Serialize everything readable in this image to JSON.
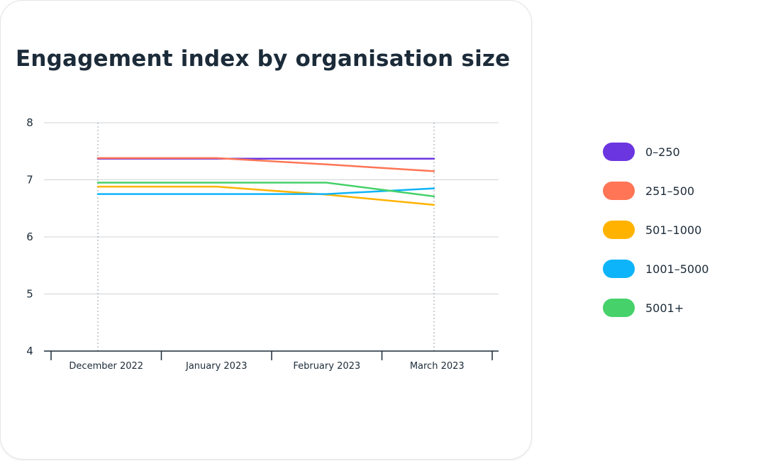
{
  "chart_data": {
    "type": "line",
    "title": "Engagement index by organisation size",
    "xlabel": "",
    "ylabel": "",
    "categories": [
      "December 2022",
      "January 2023",
      "February 2023",
      "March 2023"
    ],
    "ylim": [
      4,
      8
    ],
    "yticks": [
      "4",
      "5",
      "6",
      "7",
      "8"
    ],
    "grid": "horizontal",
    "legend_position": "right",
    "series": [
      {
        "name": "0–250",
        "color": "#6b35e0",
        "values": [
          7.37,
          7.37,
          7.37,
          7.37
        ]
      },
      {
        "name": "251–500",
        "color": "#ff7556",
        "values": [
          7.38,
          7.38,
          7.27,
          7.15
        ]
      },
      {
        "name": "501–1000",
        "color": "#ffb300",
        "values": [
          6.88,
          6.88,
          6.74,
          6.56
        ]
      },
      {
        "name": "1001–5000",
        "color": "#0eb4f9",
        "values": [
          6.75,
          6.75,
          6.75,
          6.85
        ]
      },
      {
        "name": "5001+",
        "color": "#46d16a",
        "values": [
          6.95,
          6.95,
          6.95,
          6.71
        ]
      }
    ]
  }
}
